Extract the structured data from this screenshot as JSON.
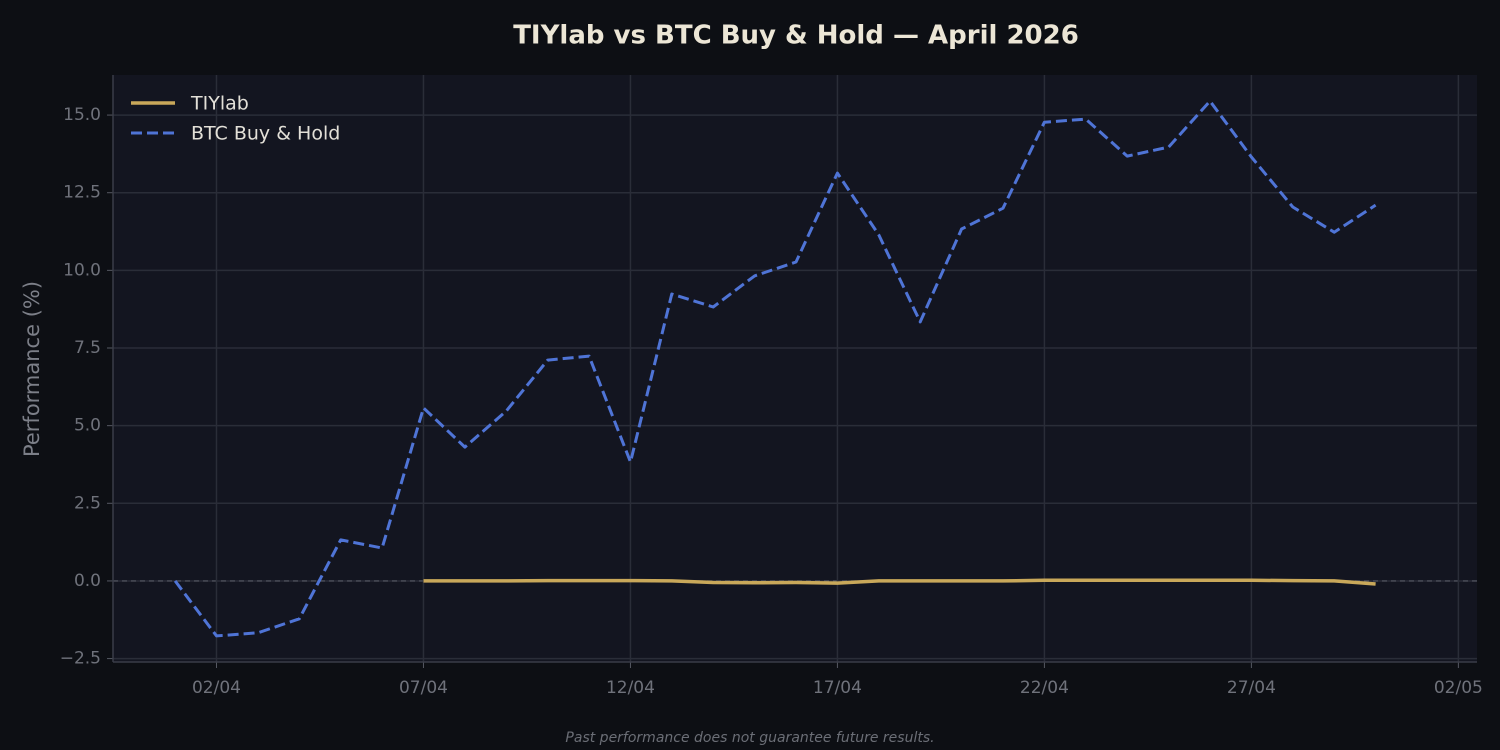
{
  "chart_data": {
    "type": "line",
    "title": "TIYlab vs BTC Buy & Hold — April 2026",
    "ylabel": "Performance (%)",
    "footnote": "Past performance does not guarantee future results.",
    "xticks": [
      "02/04",
      "07/04",
      "12/04",
      "17/04",
      "22/04",
      "27/04",
      "02/05"
    ],
    "ylim": [
      -2.61,
      16.29
    ],
    "yticks": [
      {
        "value": -2.5,
        "label": "−2.5"
      },
      {
        "value": 0,
        "label": "0.0"
      },
      {
        "value": 2.5,
        "label": "2.5"
      },
      {
        "value": 5,
        "label": "5.0"
      },
      {
        "value": 7.5,
        "label": "7.5"
      },
      {
        "value": 10,
        "label": "10.0"
      },
      {
        "value": 12.5,
        "label": "12.5"
      },
      {
        "value": 15,
        "label": "15.0"
      }
    ],
    "grid": true,
    "legend": "upper-left",
    "series": [
      {
        "name": "TIYlab",
        "color": "#c9a85a",
        "dash": false,
        "x": [
          "07/04",
          "08/04",
          "09/04",
          "10/04",
          "11/04",
          "12/04",
          "13/04",
          "14/04",
          "15/04",
          "16/04",
          "17/04",
          "18/04",
          "19/04",
          "20/04",
          "21/04",
          "22/04",
          "23/04",
          "24/04",
          "25/04",
          "26/04",
          "27/04",
          "28/04",
          "29/04",
          "30/04"
        ],
        "values": [
          0,
          0,
          0,
          0.01,
          0.01,
          0.01,
          0,
          -0.05,
          -0.06,
          -0.05,
          -0.07,
          0,
          0,
          0,
          0,
          0.02,
          0.02,
          0.02,
          0.02,
          0.02,
          0.02,
          0.01,
          0,
          -0.1
        ]
      },
      {
        "name": "BTC Buy & Hold",
        "color": "#4f74d6",
        "dash": true,
        "x": [
          "01/04",
          "02/04",
          "03/04",
          "04/04",
          "05/04",
          "06/04",
          "07/04",
          "08/04",
          "09/04",
          "10/04",
          "11/04",
          "12/04",
          "13/04",
          "14/04",
          "15/04",
          "16/04",
          "17/04",
          "18/04",
          "19/04",
          "20/04",
          "21/04",
          "22/04",
          "23/04",
          "24/04",
          "25/04",
          "26/04",
          "27/04",
          "28/04",
          "29/04",
          "30/04"
        ],
        "values": [
          0,
          -1.77,
          -1.67,
          -1.22,
          1.32,
          1.06,
          5.57,
          4.31,
          5.47,
          7.11,
          7.24,
          3.83,
          9.24,
          8.82,
          9.82,
          10.27,
          13.13,
          11.14,
          8.34,
          11.33,
          12.0,
          14.77,
          14.87,
          13.68,
          13.97,
          15.45,
          13.65,
          12.04,
          11.23,
          12.1
        ]
      }
    ]
  }
}
